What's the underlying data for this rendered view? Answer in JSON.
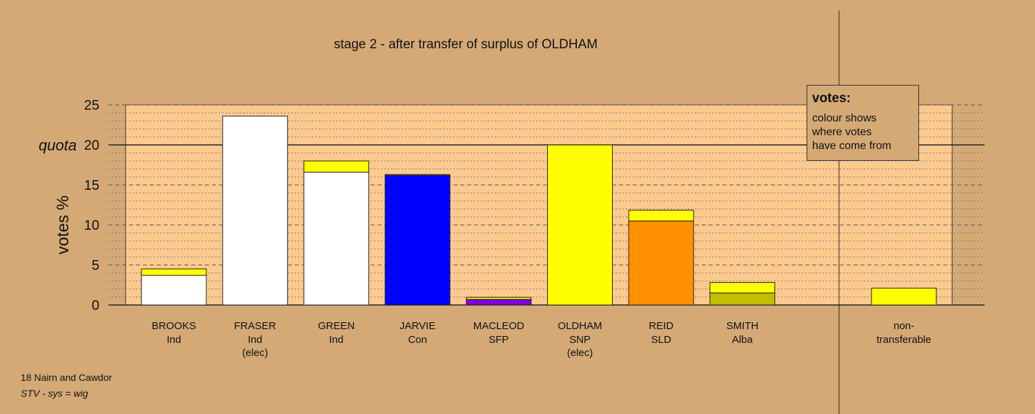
{
  "chart_data": {
    "type": "bar",
    "title": "stage 2 - after transfer of surplus of OLDHAM",
    "ylabel": "votes %",
    "ylim": [
      0,
      25
    ],
    "yticks": [
      0,
      5,
      10,
      15,
      20,
      25
    ],
    "quota": {
      "value": 20,
      "label": "quota"
    },
    "grid": "minor dotted at 1, dashed at 5",
    "candidates": [
      {
        "name": "BROOKS",
        "party": "Ind",
        "status": "",
        "segments": [
          {
            "value": 3.7,
            "color": "#ffffff"
          },
          {
            "value": 0.8,
            "color": "#ffff00"
          }
        ]
      },
      {
        "name": "FRASER",
        "party": "Ind",
        "status": "(elec)",
        "segments": [
          {
            "value": 23.6,
            "color": "#ffffff"
          }
        ]
      },
      {
        "name": "GREEN",
        "party": "Ind",
        "status": "",
        "segments": [
          {
            "value": 16.6,
            "color": "#ffffff"
          },
          {
            "value": 1.4,
            "color": "#ffff00"
          }
        ]
      },
      {
        "name": "JARVIE",
        "party": "Con",
        "status": "",
        "segments": [
          {
            "value": 16.2,
            "color": "#0000ff"
          },
          {
            "value": 0.1,
            "color": "#ffff00"
          }
        ]
      },
      {
        "name": "MACLEOD",
        "party": "SFP",
        "status": "",
        "segments": [
          {
            "value": 0.7,
            "color": "#8000e0"
          },
          {
            "value": 0.25,
            "color": "#ffff00"
          }
        ]
      },
      {
        "name": "OLDHAM",
        "party": "SNP",
        "status": "(elec)",
        "segments": [
          {
            "value": 20.0,
            "color": "#ffff00"
          }
        ]
      },
      {
        "name": "REID",
        "party": "SLD",
        "status": "",
        "segments": [
          {
            "value": 10.5,
            "color": "#ff9000"
          },
          {
            "value": 1.35,
            "color": "#ffff00"
          }
        ]
      },
      {
        "name": "SMITH",
        "party": "Alba",
        "status": "",
        "segments": [
          {
            "value": 1.5,
            "color": "#c0c000"
          },
          {
            "value": 1.3,
            "color": "#ffff00"
          }
        ]
      }
    ],
    "non_transferable": {
      "label_line1": "non-",
      "label_line2": "transferable",
      "segments": [
        {
          "value": 2.1,
          "color": "#ffff00"
        }
      ]
    },
    "legend": {
      "title": "votes:",
      "lines": [
        "colour shows",
        "where votes",
        "have come from"
      ],
      "placement": "top-right"
    }
  },
  "footer": {
    "district": "18 Nairn and Cawdor",
    "system": "STV - sys = wig"
  },
  "colors": {
    "background": "#d4a976",
    "plot_background": "#fcc98f"
  }
}
